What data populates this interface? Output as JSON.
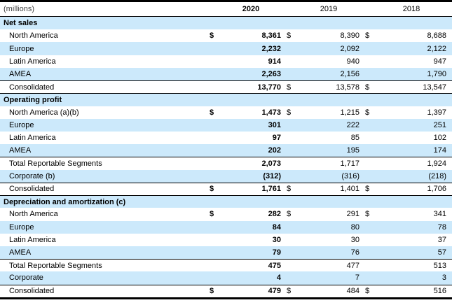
{
  "table": {
    "header": {
      "units_label": "(millions)",
      "years": [
        "2020",
        "2019",
        "2018"
      ]
    },
    "currency_symbol": "$",
    "colors": {
      "row_stripe": "#cce9fb",
      "border": "#000000",
      "units_text": "#3f3f3f"
    },
    "sections": [
      {
        "title": "Net sales",
        "rule_above_title": false,
        "rows": [
          {
            "label": "North America",
            "dollars": [
              true,
              true,
              true
            ],
            "values": [
              "8,361",
              "8,390",
              "8,688"
            ],
            "rule_above": false
          },
          {
            "label": "Europe",
            "dollars": [
              false,
              false,
              false
            ],
            "values": [
              "2,232",
              "2,092",
              "2,122"
            ],
            "rule_above": false
          },
          {
            "label": "Latin America",
            "dollars": [
              false,
              false,
              false
            ],
            "values": [
              "914",
              "940",
              "947"
            ],
            "rule_above": false
          },
          {
            "label": "AMEA",
            "dollars": [
              false,
              false,
              false
            ],
            "values": [
              "2,263",
              "2,156",
              "1,790"
            ],
            "rule_above": false
          },
          {
            "label": "Consolidated",
            "dollars": [
              false,
              true,
              true
            ],
            "values": [
              "13,770",
              "13,578",
              "13,547"
            ],
            "rule_above": true
          }
        ]
      },
      {
        "title": "Operating profit",
        "rule_above_title": true,
        "rows": [
          {
            "label": "North America (a)(b)",
            "dollars": [
              true,
              true,
              true
            ],
            "values": [
              "1,473",
              "1,215",
              "1,397"
            ],
            "rule_above": false
          },
          {
            "label": "Europe",
            "dollars": [
              false,
              false,
              false
            ],
            "values": [
              "301",
              "222",
              "251"
            ],
            "rule_above": false
          },
          {
            "label": "Latin America",
            "dollars": [
              false,
              false,
              false
            ],
            "values": [
              "97",
              "85",
              "102"
            ],
            "rule_above": false
          },
          {
            "label": "AMEA",
            "dollars": [
              false,
              false,
              false
            ],
            "values": [
              "202",
              "195",
              "174"
            ],
            "rule_above": false
          },
          {
            "label": "Total Reportable Segments",
            "dollars": [
              false,
              false,
              false
            ],
            "values": [
              "2,073",
              "1,717",
              "1,924"
            ],
            "rule_above": true
          },
          {
            "label": "Corporate (b)",
            "dollars": [
              false,
              false,
              false
            ],
            "values": [
              "(312)",
              "(316)",
              "(218)"
            ],
            "rule_above": false
          },
          {
            "label": "Consolidated",
            "dollars": [
              true,
              true,
              true
            ],
            "values": [
              "1,761",
              "1,401",
              "1,706"
            ],
            "rule_above": true
          }
        ]
      },
      {
        "title": "Depreciation and amortization (c)",
        "rule_above_title": true,
        "rows": [
          {
            "label": "North America",
            "dollars": [
              true,
              true,
              true
            ],
            "values": [
              "282",
              "291",
              "341"
            ],
            "rule_above": false
          },
          {
            "label": "Europe",
            "dollars": [
              false,
              false,
              false
            ],
            "values": [
              "84",
              "80",
              "78"
            ],
            "rule_above": false
          },
          {
            "label": "Latin America",
            "dollars": [
              false,
              false,
              false
            ],
            "values": [
              "30",
              "30",
              "37"
            ],
            "rule_above": false
          },
          {
            "label": "AMEA",
            "dollars": [
              false,
              false,
              false
            ],
            "values": [
              "79",
              "76",
              "57"
            ],
            "rule_above": false
          },
          {
            "label": "Total Reportable Segments",
            "dollars": [
              false,
              false,
              false
            ],
            "values": [
              "475",
              "477",
              "513"
            ],
            "rule_above": true
          },
          {
            "label": "Corporate",
            "dollars": [
              false,
              false,
              false
            ],
            "values": [
              "4",
              "7",
              "3"
            ],
            "rule_above": false
          },
          {
            "label": "Consolidated",
            "dollars": [
              true,
              true,
              true
            ],
            "values": [
              "479",
              "484",
              "516"
            ],
            "rule_above": true
          }
        ]
      }
    ]
  }
}
